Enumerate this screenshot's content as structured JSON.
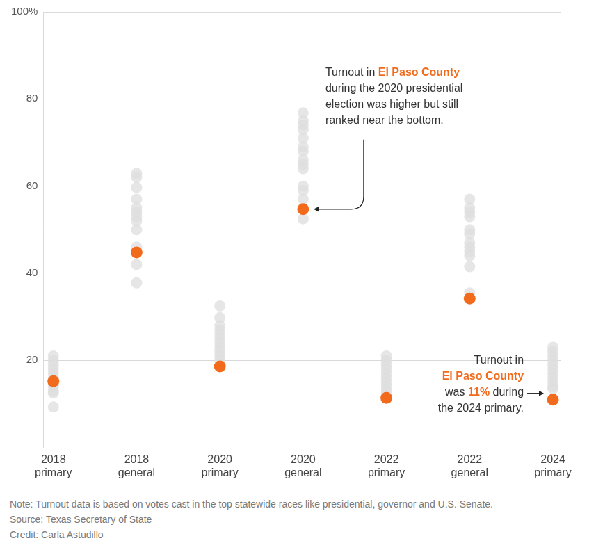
{
  "chart_data": {
    "type": "strip",
    "categories": [
      "2018 primary",
      "2018 general",
      "2020 primary",
      "2020 general",
      "2022 primary",
      "2022 general",
      "2024 primary"
    ],
    "series": [
      {
        "color": "#dddddd",
        "values": [
          [
            21,
            20,
            19,
            18,
            17,
            16,
            15,
            14,
            13,
            12.5,
            9.3
          ],
          [
            62.9,
            62,
            59.7,
            57,
            55,
            54,
            53,
            52,
            50,
            46,
            42,
            37.8
          ],
          [
            32.5,
            29.8,
            28,
            27,
            26,
            25,
            24,
            23,
            22,
            21,
            20
          ],
          [
            76.8,
            75,
            74,
            73,
            71,
            69,
            68,
            66,
            65,
            64,
            60,
            59,
            57,
            52.5
          ],
          [
            21,
            20,
            19,
            18,
            17,
            16,
            15,
            14,
            13,
            12
          ],
          [
            57,
            55,
            54,
            53,
            50,
            49,
            47,
            46,
            45,
            44,
            41.5,
            35.5
          ],
          [
            23,
            22,
            21,
            20,
            19,
            18,
            17,
            16,
            15,
            14,
            13.5
          ]
        ]
      },
      {
        "color": "#f26b1d",
        "values": [
          15.2,
          44.8,
          18.6,
          54.7,
          11.4,
          34.2,
          11
        ]
      }
    ],
    "ylim": [
      0,
      100
    ],
    "yticks": [
      20,
      40,
      60,
      80,
      {
        "value": 100,
        "label": "100%"
      }
    ],
    "grid": true,
    "annotations": [
      {
        "category": "2020 general",
        "lines": [
          [
            {
              "text": "Turnout in "
            },
            {
              "text": "El Paso County",
              "color": "#f26b1d"
            }
          ],
          [
            {
              "text": "during the 2020 presidential"
            }
          ],
          [
            {
              "text": "election was higher but still"
            }
          ],
          [
            {
              "text": "ranked near the bottom."
            }
          ]
        ]
      },
      {
        "category": "2024 primary",
        "lines": [
          [
            {
              "text": "Turnout in"
            }
          ],
          [
            {
              "text": "El Paso County",
              "color": "#f26b1d"
            }
          ],
          [
            {
              "text": "was "
            },
            {
              "text": "11%",
              "color": "#f26b1d"
            },
            {
              "text": " during"
            }
          ],
          [
            {
              "text": "the 2024 primary."
            }
          ]
        ]
      }
    ],
    "notes": [
      "Note: Turnout data is based on votes cast in the top statewide races like presidential, governor and U.S. Senate.",
      "Source: Texas Secretary of State",
      "Credit: Carla Astudillo"
    ]
  }
}
